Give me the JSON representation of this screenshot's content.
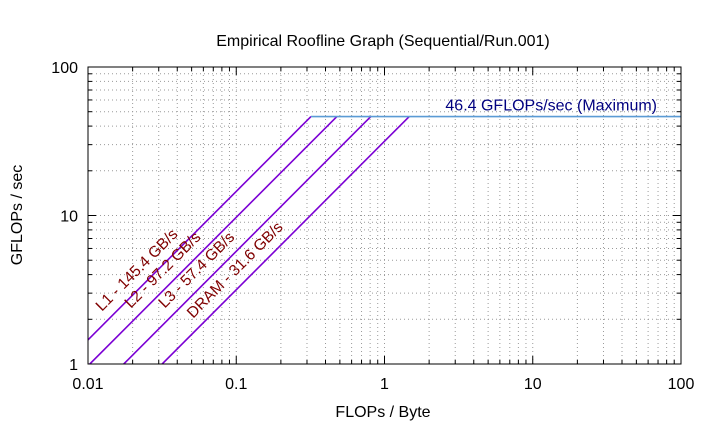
{
  "chart_data": {
    "type": "line",
    "title": "Empirical Roofline Graph (Sequential/Run.001)",
    "xlabel": "FLOPs / Byte",
    "ylabel": "GFLOPs / sec",
    "xscale": "log",
    "yscale": "log",
    "xlim": [
      0.01,
      100
    ],
    "ylim": [
      1,
      100
    ],
    "x_ticks": [
      "0.01",
      "0.1",
      "1",
      "10",
      "100"
    ],
    "y_ticks": [
      "1",
      "10",
      "100"
    ],
    "grid": true,
    "grid_style": "dotted",
    "peak": {
      "name": "Maximum",
      "gflops": 46.4,
      "label": "46.4 GFLOPs/sec (Maximum)",
      "color": "#5B9BD5"
    },
    "bandwidth_color": "#7B00D4",
    "label_color": "#800000",
    "peak_label_color": "#000080",
    "series": [
      {
        "name": "L1",
        "bandwidth_gbs": 145.4,
        "label": "L1 - 145.4 GB/s"
      },
      {
        "name": "L2",
        "bandwidth_gbs": 97.2,
        "label": "L2 - 97.2 GB/s"
      },
      {
        "name": "L3",
        "bandwidth_gbs": 57.4,
        "label": "L3 - 57.4 GB/s"
      },
      {
        "name": "DRAM",
        "bandwidth_gbs": 31.6,
        "label": "DRAM - 31.6 GB/s"
      }
    ]
  }
}
